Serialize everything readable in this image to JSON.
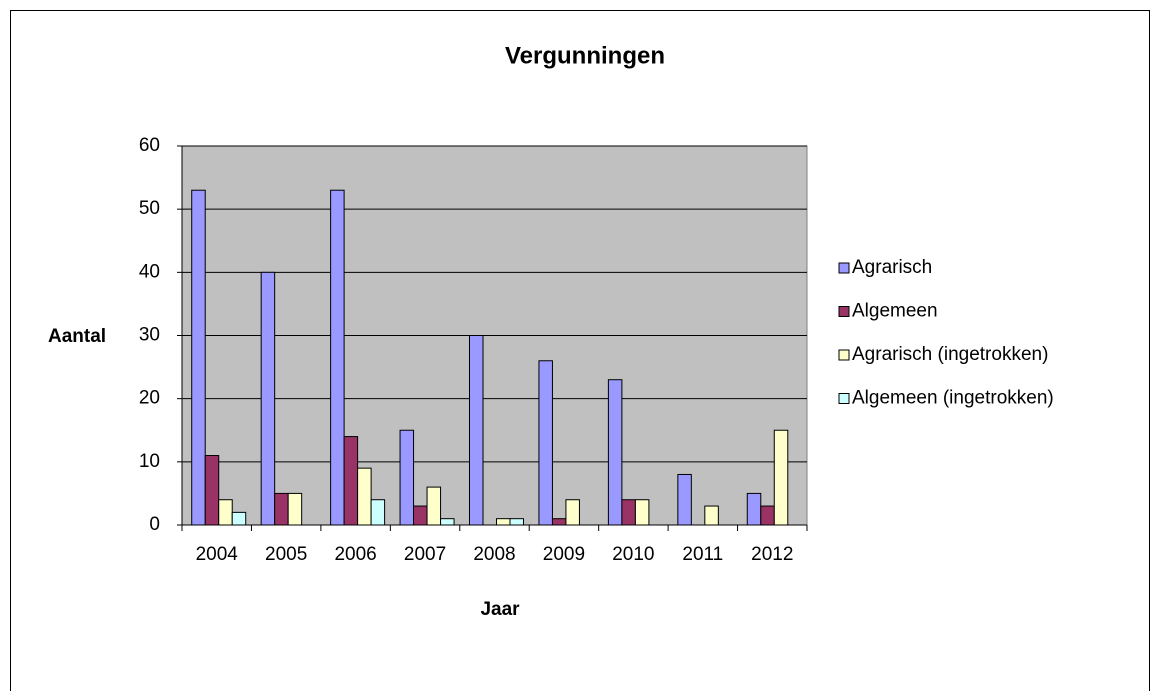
{
  "chart_data": {
    "type": "bar",
    "title": "Vergunningen",
    "x_label": "Jaar",
    "y_label": "Aantal",
    "categories": [
      "2004",
      "2005",
      "2006",
      "2007",
      "2008",
      "2009",
      "2010",
      "2011",
      "2012"
    ],
    "series": [
      {
        "name": "Agrarisch",
        "color": "#9999ff",
        "values": [
          53,
          40,
          53,
          15,
          30,
          26,
          23,
          8,
          5
        ]
      },
      {
        "name": "Algemeen",
        "color": "#993366",
        "values": [
          11,
          5,
          14,
          3,
          0,
          1,
          4,
          0,
          3
        ]
      },
      {
        "name": "Agrarisch (ingetrokken)",
        "color": "#ffffcc",
        "values": [
          4,
          5,
          9,
          6,
          1,
          4,
          4,
          3,
          15
        ]
      },
      {
        "name": "Algemeen (ingetrokken)",
        "color": "#ccffff",
        "values": [
          2,
          0,
          4,
          1,
          1,
          0,
          0,
          0,
          0
        ]
      }
    ],
    "ylim": [
      0,
      60
    ],
    "yticks": [
      0,
      10,
      20,
      30,
      40,
      50,
      60
    ],
    "grid": true,
    "legend": "right"
  }
}
